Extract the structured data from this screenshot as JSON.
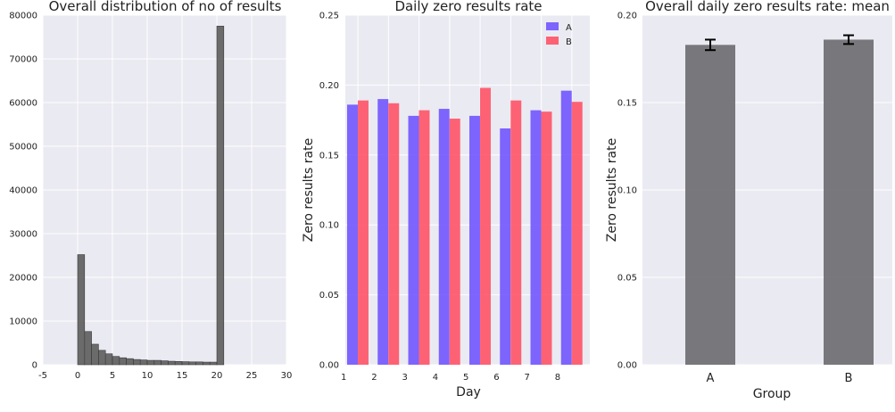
{
  "colors": {
    "panel_bg": "#EAEAF2",
    "grid": "#FFFFFF",
    "hist_bar": "#555555",
    "series_a": "#6A4CFF",
    "series_b": "#FF4A5E",
    "mean_bar": "#5A5A5E",
    "error_bar": "#000000"
  },
  "chart_data": [
    {
      "type": "bar",
      "subtype": "histogram",
      "title": "Overall distribution of no of results",
      "xlabel": "",
      "ylabel": "",
      "xlim": [
        -5,
        30
      ],
      "ylim": [
        0,
        80000
      ],
      "xticks": [
        -5,
        0,
        5,
        10,
        15,
        20,
        25,
        30
      ],
      "yticks": [
        0,
        10000,
        20000,
        30000,
        40000,
        50000,
        60000,
        70000,
        80000
      ],
      "bin_width": 1,
      "bins": [
        {
          "x": 0,
          "value": 25200
        },
        {
          "x": 1,
          "value": 7600
        },
        {
          "x": 2,
          "value": 4700
        },
        {
          "x": 3,
          "value": 3300
        },
        {
          "x": 4,
          "value": 2500
        },
        {
          "x": 5,
          "value": 1900
        },
        {
          "x": 6,
          "value": 1600
        },
        {
          "x": 7,
          "value": 1400
        },
        {
          "x": 8,
          "value": 1200
        },
        {
          "x": 9,
          "value": 1100
        },
        {
          "x": 10,
          "value": 1000
        },
        {
          "x": 11,
          "value": 1000
        },
        {
          "x": 12,
          "value": 900
        },
        {
          "x": 13,
          "value": 800
        },
        {
          "x": 14,
          "value": 750
        },
        {
          "x": 15,
          "value": 700
        },
        {
          "x": 16,
          "value": 650
        },
        {
          "x": 17,
          "value": 650
        },
        {
          "x": 18,
          "value": 600
        },
        {
          "x": 19,
          "value": 600
        },
        {
          "x": 20,
          "value": 77500
        }
      ],
      "grid": true
    },
    {
      "type": "bar",
      "title": "Daily zero results rate",
      "xlabel": "Day",
      "ylabel": "Zero results rate",
      "categories": [
        "1",
        "2",
        "3",
        "4",
        "5",
        "6",
        "7",
        "8"
      ],
      "ylim": [
        0,
        0.25
      ],
      "yticks": [
        "0.00",
        "0.05",
        "0.10",
        "0.15",
        "0.20",
        "0.25"
      ],
      "series": [
        {
          "name": "A",
          "values": [
            0.186,
            0.19,
            0.178,
            0.183,
            0.178,
            0.169,
            0.182,
            0.196
          ]
        },
        {
          "name": "B",
          "values": [
            0.189,
            0.187,
            0.182,
            0.176,
            0.198,
            0.189,
            0.181,
            0.188
          ]
        }
      ],
      "legend": "top-right",
      "grid": true
    },
    {
      "type": "bar",
      "title": "Overall daily zero results rate: mean",
      "xlabel": "Group",
      "ylabel": "Zero results rate",
      "categories": [
        "A",
        "B"
      ],
      "values": [
        0.183,
        0.186
      ],
      "errors": [
        0.003,
        0.0025
      ],
      "ylim": [
        0,
        0.2
      ],
      "yticks": [
        "0.00",
        "0.05",
        "0.10",
        "0.15",
        "0.20"
      ],
      "grid": true
    }
  ]
}
